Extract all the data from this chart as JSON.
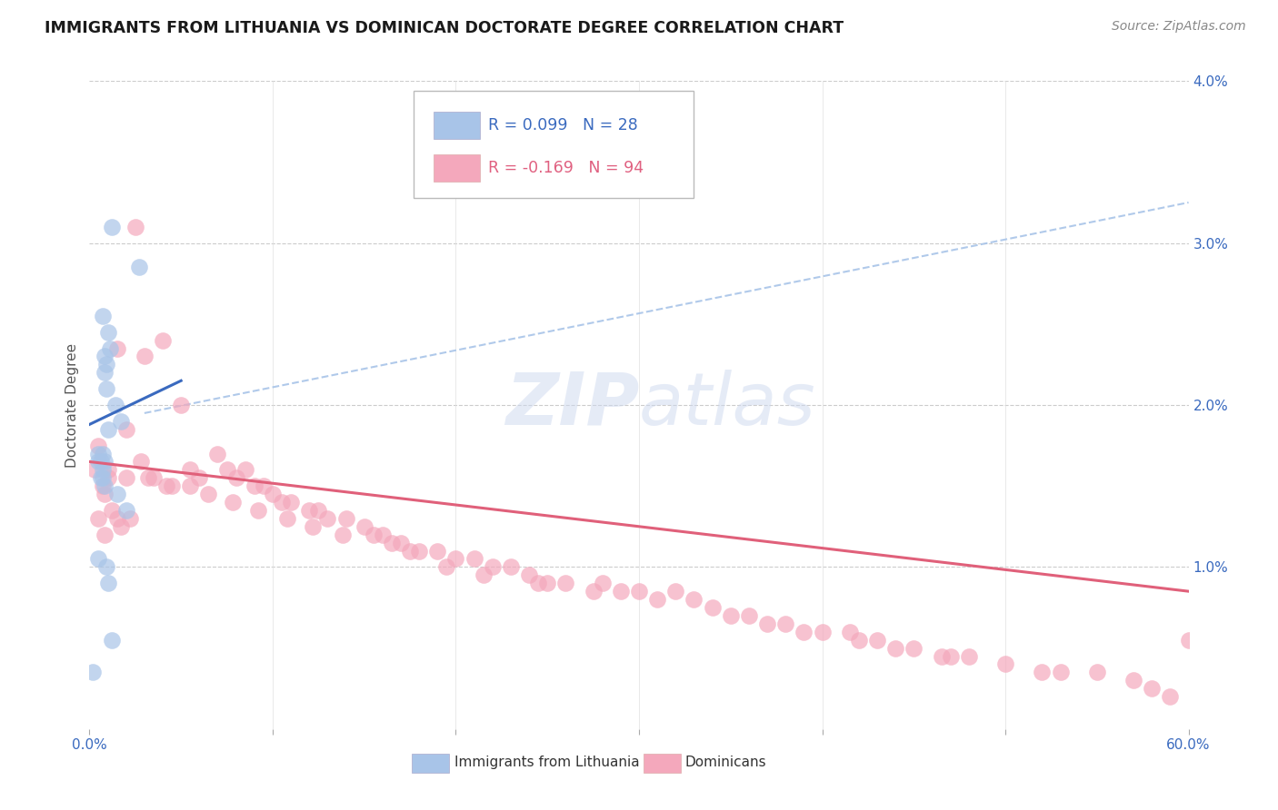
{
  "title": "IMMIGRANTS FROM LITHUANIA VS DOMINICAN DOCTORATE DEGREE CORRELATION CHART",
  "source": "Source: ZipAtlas.com",
  "ylabel": "Doctorate Degree",
  "xlim": [
    0.0,
    60.0
  ],
  "ylim": [
    0.0,
    4.0
  ],
  "legend_blue_r": "R = 0.099",
  "legend_blue_n": "N = 28",
  "legend_pink_r": "R = -0.169",
  "legend_pink_n": "N = 94",
  "blue_color": "#a8c4e8",
  "pink_color": "#f4a8bc",
  "trendline_blue_color": "#3a6abf",
  "trendline_pink_color": "#e0607a",
  "trendline_dashed_color": "#a8c4e8",
  "watermark_color": "#cdd8ef",
  "blue_trend_x0": 0.0,
  "blue_trend_y0": 1.88,
  "blue_trend_x1": 5.0,
  "blue_trend_y1": 2.15,
  "pink_trend_x0": 0.0,
  "pink_trend_y0": 1.65,
  "pink_trend_x1": 60.0,
  "pink_trend_y1": 0.85,
  "dashed_x0": 3.0,
  "dashed_y0": 1.95,
  "dashed_x1": 60.0,
  "dashed_y1": 3.25,
  "lithuania_x": [
    0.2,
    0.5,
    0.5,
    0.5,
    0.6,
    0.6,
    0.7,
    0.7,
    0.7,
    0.7,
    0.8,
    0.8,
    0.8,
    0.8,
    0.9,
    0.9,
    0.9,
    1.0,
    1.0,
    1.0,
    1.1,
    1.2,
    1.2,
    1.4,
    1.5,
    1.7,
    2.0,
    2.7
  ],
  "lithuania_y": [
    0.35,
    1.05,
    1.65,
    1.7,
    1.55,
    1.65,
    1.55,
    1.6,
    1.7,
    2.55,
    2.2,
    1.5,
    1.65,
    2.3,
    1.0,
    2.1,
    2.25,
    0.9,
    1.85,
    2.45,
    2.35,
    0.55,
    3.1,
    2.0,
    1.45,
    1.9,
    1.35,
    2.85
  ],
  "dominican_x": [
    0.3,
    0.5,
    0.5,
    0.7,
    0.8,
    0.8,
    1.0,
    1.0,
    1.2,
    1.5,
    1.5,
    1.7,
    2.0,
    2.0,
    2.2,
    2.5,
    2.8,
    3.0,
    3.5,
    4.0,
    4.5,
    5.0,
    5.5,
    6.0,
    7.0,
    7.5,
    8.0,
    8.5,
    9.0,
    9.5,
    10.0,
    10.5,
    11.0,
    12.0,
    12.5,
    13.0,
    14.0,
    15.0,
    15.5,
    16.0,
    17.0,
    17.5,
    18.0,
    19.0,
    20.0,
    21.0,
    22.0,
    23.0,
    24.0,
    25.0,
    26.0,
    28.0,
    29.0,
    30.0,
    32.0,
    33.0,
    34.0,
    35.0,
    37.0,
    38.0,
    39.0,
    40.0,
    42.0,
    43.0,
    44.0,
    45.0,
    47.0,
    48.0,
    50.0,
    52.0,
    55.0,
    57.0,
    58.0,
    60.0,
    3.2,
    4.2,
    5.5,
    6.5,
    7.8,
    9.2,
    10.8,
    12.2,
    13.8,
    16.5,
    19.5,
    21.5,
    24.5,
    27.5,
    31.0,
    36.0,
    41.5,
    46.5,
    53.0,
    59.0
  ],
  "dominican_y": [
    1.6,
    1.75,
    1.3,
    1.5,
    1.45,
    1.2,
    1.6,
    1.55,
    1.35,
    2.35,
    1.3,
    1.25,
    1.85,
    1.55,
    1.3,
    3.1,
    1.65,
    2.3,
    1.55,
    2.4,
    1.5,
    2.0,
    1.6,
    1.55,
    1.7,
    1.6,
    1.55,
    1.6,
    1.5,
    1.5,
    1.45,
    1.4,
    1.4,
    1.35,
    1.35,
    1.3,
    1.3,
    1.25,
    1.2,
    1.2,
    1.15,
    1.1,
    1.1,
    1.1,
    1.05,
    1.05,
    1.0,
    1.0,
    0.95,
    0.9,
    0.9,
    0.9,
    0.85,
    0.85,
    0.85,
    0.8,
    0.75,
    0.7,
    0.65,
    0.65,
    0.6,
    0.6,
    0.55,
    0.55,
    0.5,
    0.5,
    0.45,
    0.45,
    0.4,
    0.35,
    0.35,
    0.3,
    0.25,
    0.55,
    1.55,
    1.5,
    1.5,
    1.45,
    1.4,
    1.35,
    1.3,
    1.25,
    1.2,
    1.15,
    1.0,
    0.95,
    0.9,
    0.85,
    0.8,
    0.7,
    0.6,
    0.45,
    0.35,
    0.2
  ]
}
